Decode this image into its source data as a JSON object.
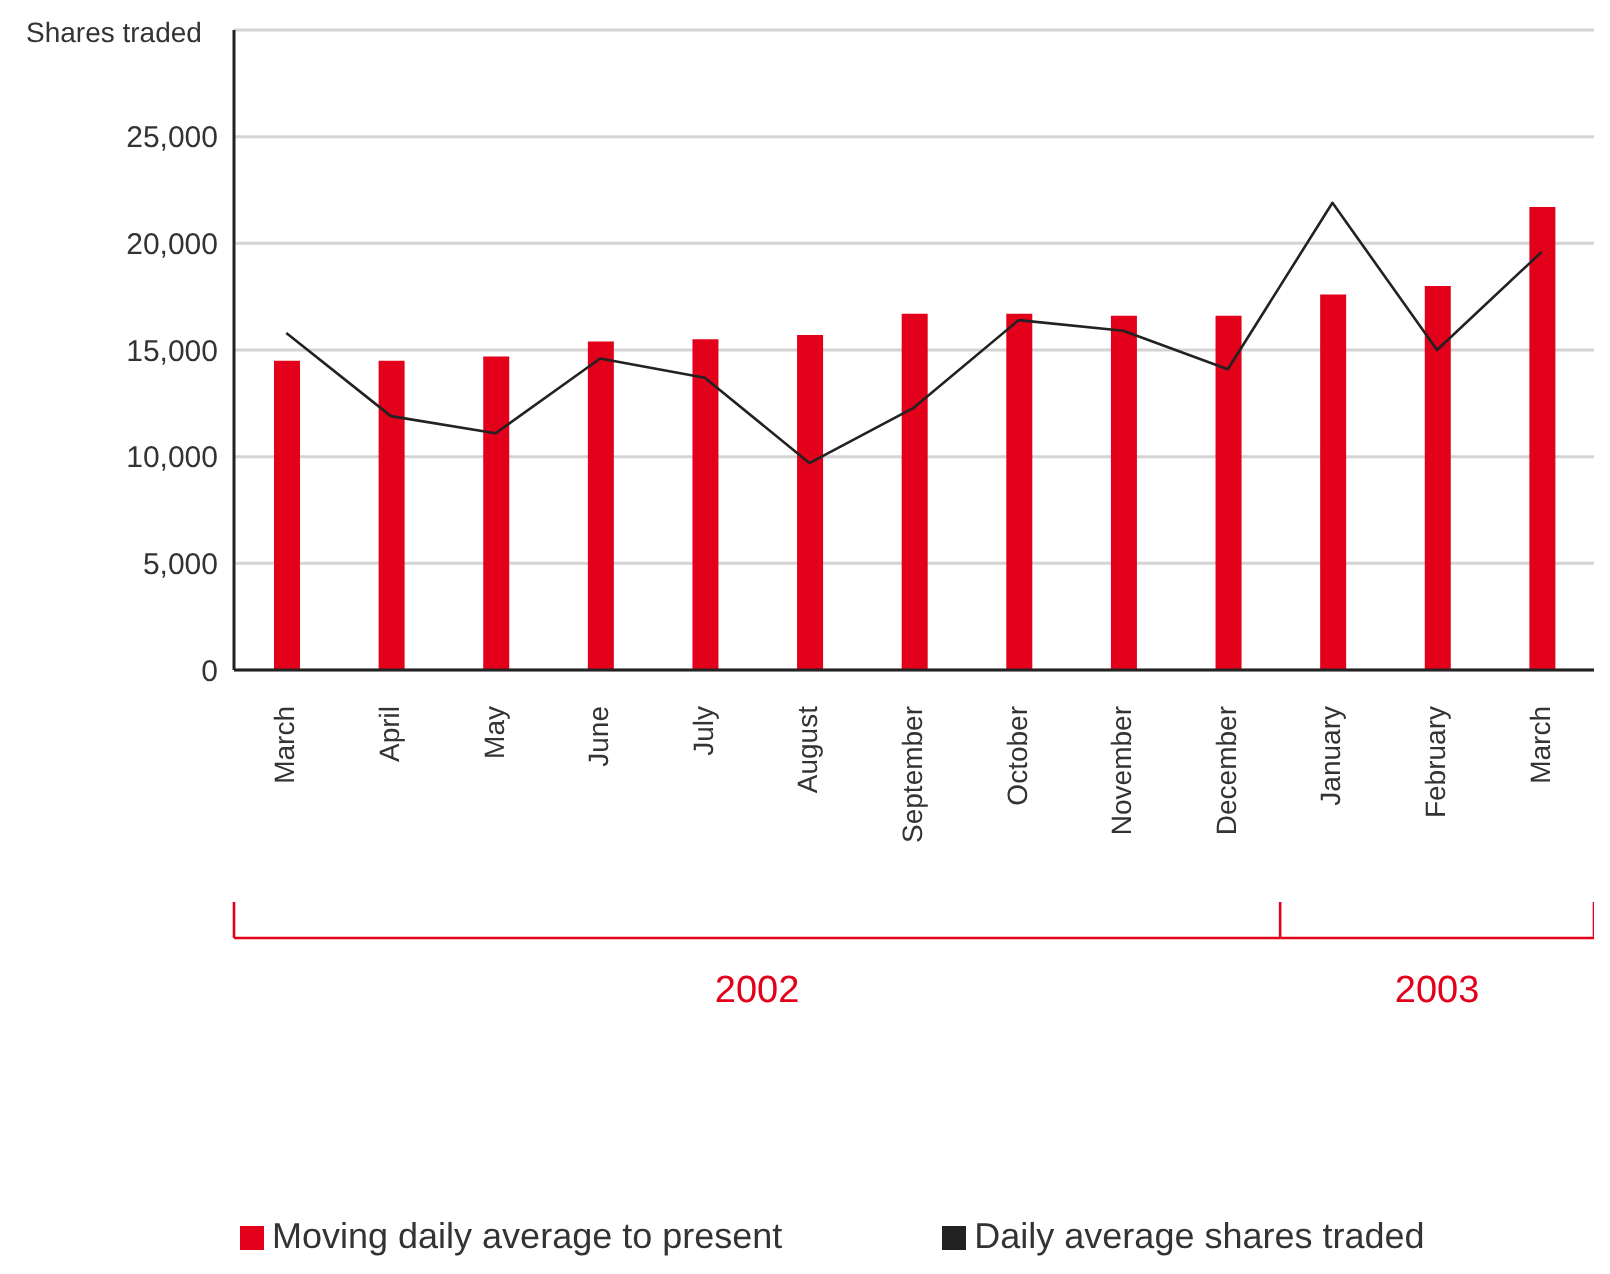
{
  "chart_data": {
    "type": "bar",
    "ylabel": "Shares traded",
    "categories": [
      "March",
      "April",
      "May",
      "June",
      "July",
      "August",
      "September",
      "October",
      "November",
      "December",
      "January",
      "February",
      "March"
    ],
    "series": [
      {
        "name": "Moving daily average to present",
        "color": "#e2001a",
        "values": [
          14500,
          14500,
          14700,
          15400,
          15500,
          15700,
          16700,
          16700,
          16600,
          16600,
          17600,
          18000,
          21700
        ]
      },
      {
        "name": "Daily average shares traded",
        "type": "line",
        "color": "#222222",
        "values": [
          15800,
          11900,
          11100,
          14600,
          13700,
          9700,
          12300,
          16400,
          15900,
          14100,
          21900,
          15000,
          19600
        ]
      }
    ],
    "ylim": [
      0,
      30000
    ],
    "yticks": [
      0,
      {
        "value": 5000,
        "label": "5,000"
      },
      {
        "value": 10000,
        "label": "10,000"
      },
      {
        "value": 15000,
        "label": "15,000"
      },
      {
        "value": 20000,
        "label": "20,000"
      },
      {
        "value": 25000,
        "label": "25,000"
      }
    ],
    "grid": "y",
    "legend": "bottom left",
    "marker": "none",
    "annotations": [
      "2002",
      "2003"
    ]
  }
}
